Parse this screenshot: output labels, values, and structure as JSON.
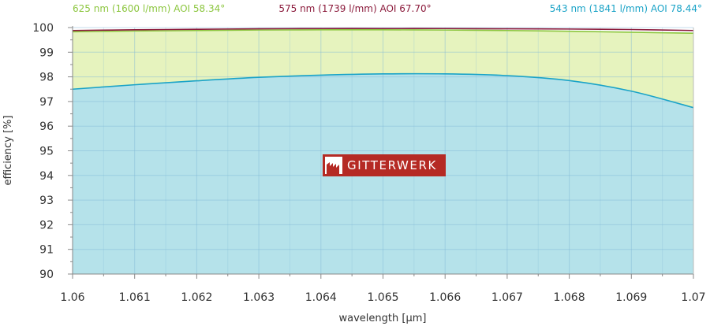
{
  "chart_data": {
    "type": "area",
    "xlabel": "wavelength [µm]",
    "ylabel": "efficiency [%]",
    "xlim": [
      1.06,
      1.07
    ],
    "ylim": [
      90,
      100
    ],
    "x_ticks": [
      "1.06",
      "1.061",
      "1.062",
      "1.063",
      "1.064",
      "1.065",
      "1.066",
      "1.067",
      "1.068",
      "1.069",
      "1.07"
    ],
    "y_ticks": [
      "90",
      "91",
      "92",
      "93",
      "94",
      "95",
      "96",
      "97",
      "98",
      "99",
      "100"
    ],
    "grid": true,
    "legend_position": "top",
    "series": [
      {
        "name": "625 nm (1600 l/mm) AOI 58.34°",
        "color": "#8cc63f",
        "fill": "#e6f3be",
        "x": [
          1.06,
          1.061,
          1.062,
          1.063,
          1.064,
          1.065,
          1.066,
          1.067,
          1.068,
          1.069,
          1.07
        ],
        "y": [
          99.83,
          99.86,
          99.88,
          99.9,
          99.91,
          99.91,
          99.9,
          99.88,
          99.85,
          99.81,
          99.77
        ]
      },
      {
        "name": "575 nm (1739 l/mm) AOI 67.70°",
        "color": "#8b1a3b",
        "fill": "",
        "x": [
          1.06,
          1.061,
          1.062,
          1.063,
          1.064,
          1.065,
          1.066,
          1.067,
          1.068,
          1.069,
          1.07
        ],
        "y": [
          99.88,
          99.91,
          99.93,
          99.95,
          99.96,
          99.96,
          99.96,
          99.95,
          99.94,
          99.92,
          99.88
        ]
      },
      {
        "name": "543 nm (1841 l/mm) AOI 78.44°",
        "color": "#1aa3c7",
        "fill": "#b5e2ea",
        "x": [
          1.06,
          1.061,
          1.062,
          1.063,
          1.064,
          1.065,
          1.066,
          1.067,
          1.068,
          1.069,
          1.07
        ],
        "y": [
          97.5,
          97.68,
          97.84,
          97.98,
          98.07,
          98.12,
          98.12,
          98.05,
          97.85,
          97.42,
          96.75
        ]
      }
    ]
  },
  "logo": {
    "text": "GITTERWERK",
    "color": "#b52a24"
  }
}
